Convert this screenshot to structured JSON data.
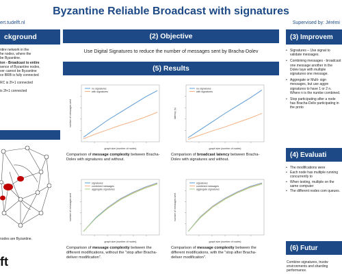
{
  "poster": {
    "title": "Byzantine Reliable Broadcast with signatures",
    "email": "ert.tudelft.nl",
    "supervised": "Supervised by: Jérémi"
  },
  "sections": {
    "background": "ckground",
    "objective": "(2) Objective",
    "results": "(5) Results",
    "improvements": "(3) Improvem",
    "evaluation": "(4) Evaluati",
    "future": "(6) Futur"
  },
  "objective_text": "Use Digital Signatures to reduce the number of messages sent by Bracha-Dolev",
  "background_lines": [
    "ntire network in the",
    "he nodes, where the",
    "be Byzantine.",
    "ion - Broadcast to entire",
    "sence of Byzantine nodes,",
    "ver cannot be Byzantine",
    "ce BRB is fully connected",
    "",
    "RC is 2f+1 connected",
    "",
    "is 2f+1 connected"
  ],
  "background_footer": "nodes are Byzantine.",
  "logo_text": "ft",
  "improvements": [
    "Signatures – Use signat to validate messages.",
    "Combining messages - broadcast one message another in the Dolev laye with multiple signatures one message.",
    "Aggregate or Multi- sign messages, but use aggre signatures to have 1 or 2 n. Where n is the numbe combined.",
    "Stop participating after a node has Bracha-Deliv participating in the proto"
  ],
  "evaluation": [
    "The modifications were",
    "Each node has multiple running concurrently to",
    "When testing, multiple on the same computer",
    "The different nodes com queues."
  ],
  "future_text": "Combine signatures, trustw environments and sharding performance.",
  "charts": [
    {
      "caption_pre": "Comparison of ",
      "caption_bold": "message complexity",
      "caption_post": " between Bracha-Dolev with signatures and without.",
      "legend": [
        "no signatures",
        "with signatures"
      ],
      "xlabel": "graph size (number of nodes)",
      "ylabel": "number of messages sent",
      "series": [
        {
          "color": "#5b9bd5",
          "values": [
            0.06,
            0.22,
            0.38,
            0.52,
            0.66,
            0.8,
            0.92
          ]
        },
        {
          "color": "#f4b183",
          "values": [
            0.03,
            0.12,
            0.2,
            0.28,
            0.35,
            0.43,
            0.52
          ]
        }
      ]
    },
    {
      "caption_pre": "Comparison of ",
      "caption_bold": "broadcast latency",
      "caption_post": " between Bracha-Dolev with signatures and without.",
      "legend": [
        "no signatures",
        "with signatures"
      ],
      "xlabel": "graph size (number of nodes)",
      "ylabel": "latency (s)",
      "series": [
        {
          "color": "#5b9bd5",
          "values": [
            0.05,
            0.2,
            0.35,
            0.5,
            0.64,
            0.78,
            0.93
          ]
        },
        {
          "color": "#f4b183",
          "values": [
            0.02,
            0.1,
            0.18,
            0.25,
            0.33,
            0.41,
            0.5
          ]
        }
      ]
    },
    {
      "caption_pre": "Comparison of ",
      "caption_bold": "message complexity",
      "caption_post": " between the different modifications, without the \"stop after Bracha-deliver modification\".",
      "legend": [
        "signatures",
        "combined messages",
        "aggregate signatures"
      ],
      "xlabel": "graph size (number of nodes)",
      "ylabel": "number of messages sent",
      "series": [
        {
          "color": "#5b9bd5",
          "values": [
            0.04,
            0.3,
            0.5,
            0.66,
            0.78,
            0.88,
            0.96
          ]
        },
        {
          "color": "#f4b183",
          "values": [
            0.04,
            0.29,
            0.49,
            0.65,
            0.77,
            0.87,
            0.95
          ]
        },
        {
          "color": "#a9d18e",
          "values": [
            0.04,
            0.29,
            0.48,
            0.64,
            0.76,
            0.86,
            0.94
          ]
        }
      ]
    },
    {
      "caption_pre": "Comparison of ",
      "caption_bold": "message complexity",
      "caption_post": " between the different modifications, with the \"stop after Bracha-deliver modification\".",
      "legend": [
        "signatures",
        "combined messages",
        "aggregate signatures"
      ],
      "xlabel": "graph size (number of nodes)",
      "ylabel": "number of messages sent",
      "series": [
        {
          "color": "#5b9bd5",
          "values": [
            0.04,
            0.32,
            0.52,
            0.67,
            0.79,
            0.89,
            0.96
          ]
        },
        {
          "color": "#f4b183",
          "values": [
            0.04,
            0.31,
            0.51,
            0.66,
            0.78,
            0.88,
            0.95
          ]
        },
        {
          "color": "#a9d18e",
          "values": [
            0.04,
            0.3,
            0.5,
            0.65,
            0.77,
            0.87,
            0.94
          ]
        }
      ]
    }
  ]
}
